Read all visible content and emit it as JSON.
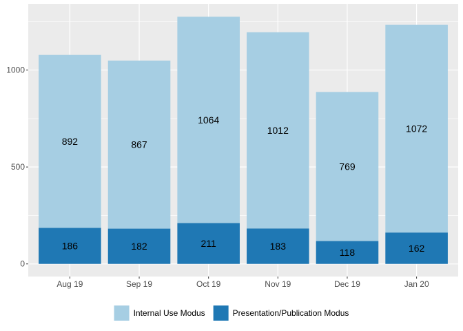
{
  "chart_data": {
    "type": "bar",
    "stacked": true,
    "categories": [
      "Aug 19",
      "Sep 19",
      "Oct 19",
      "Nov 19",
      "Dec 19",
      "Jan 20"
    ],
    "series": [
      {
        "name": "Presentation/Publication Modus",
        "values": [
          186,
          182,
          211,
          183,
          118,
          162
        ],
        "color": "#1F78B4"
      },
      {
        "name": "Internal Use Modus",
        "values": [
          892,
          867,
          1064,
          1012,
          769,
          1072
        ],
        "color": "#A6CEE3"
      }
    ],
    "title": "",
    "xlabel": "",
    "ylabel": "",
    "ylim": [
      0,
      1300
    ],
    "yticks": [
      0,
      500,
      1000
    ],
    "ytick_labels": [
      "0",
      "500",
      "1000"
    ],
    "grid": true,
    "legend": {
      "position": "bottom",
      "items": [
        {
          "name": "Internal Use Modus",
          "color": "#A6CEE3"
        },
        {
          "name": "Presentation/Publication Modus",
          "color": "#1F78B4"
        }
      ]
    },
    "panel_background": "#EBEBEB",
    "grid_color": "#FFFFFF"
  }
}
